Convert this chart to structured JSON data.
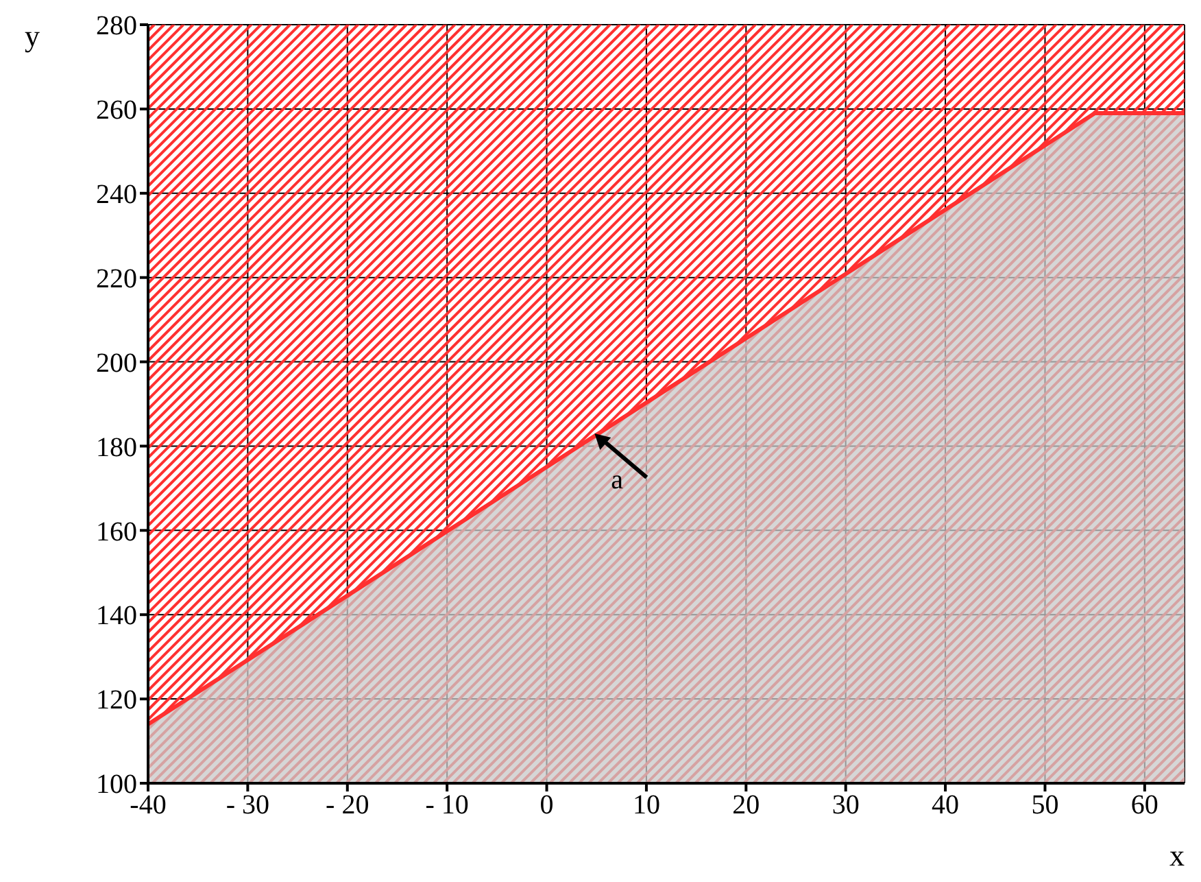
{
  "chart_data": {
    "type": "area",
    "xlabel": "x",
    "ylabel": "y",
    "x": [
      -40,
      55,
      64
    ],
    "series": [
      {
        "color": "#ff3030",
        "values": [
          114,
          259,
          259
        ]
      }
    ],
    "xlim": [
      -40,
      64
    ],
    "xticks": [
      -40,
      {
        "value": -30,
        "label": "- 30"
      },
      {
        "value": -20,
        "label": "- 20"
      },
      {
        "value": -10,
        "label": "- 10"
      },
      0,
      10,
      20,
      30,
      40,
      50,
      60
    ],
    "ylim": [
      100,
      280
    ],
    "yticks": [
      100,
      120,
      140,
      160,
      180,
      200,
      220,
      240,
      260,
      280
    ],
    "bands": [
      {
        "axis": "y",
        "from": 100,
        "to": 280,
        "color": "#ff3030"
      }
    ],
    "annotations": [
      {
        "text": "a",
        "x": 4.8,
        "y": 183
      }
    ],
    "grid": true
  }
}
